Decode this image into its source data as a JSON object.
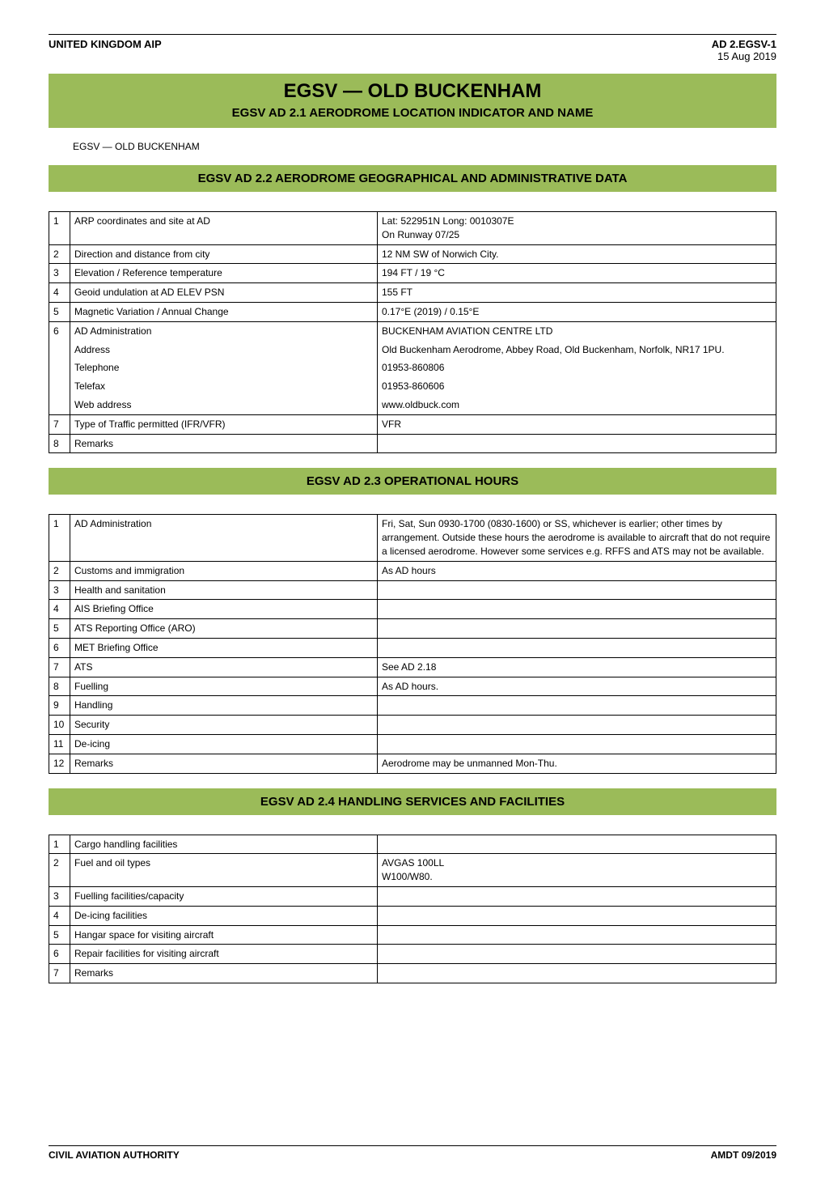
{
  "header": {
    "left": "UNITED KINGDOM AIP",
    "right_code": "AD 2.EGSV-1",
    "right_date": "15 Aug 2019"
  },
  "title_band": {
    "main_title": "EGSV — OLD BUCKENHAM",
    "sub_title": "EGSV AD 2.1  AERODROME LOCATION INDICATOR AND NAME"
  },
  "plain_line": "EGSV — OLD BUCKENHAM",
  "section_2_2": {
    "heading": "EGSV AD 2.2  AERODROME GEOGRAPHICAL AND ADMINISTRATIVE DATA",
    "rows": {
      "r1_num": "1",
      "r1_label": "ARP coordinates and site at AD",
      "r1_val_line1": "Lat: 522951N   Long: 0010307E",
      "r1_val_line2": "On Runway 07/25",
      "r2_num": "2",
      "r2_label": "Direction and distance from city",
      "r2_val": "12 NM SW of Norwich City.",
      "r3_num": "3",
      "r3_label": "Elevation / Reference temperature",
      "r3_val": "194 FT / 19 °C",
      "r4_num": "4",
      "r4_label": "Geoid undulation at AD ELEV PSN",
      "r4_val": "155 FT",
      "r5_num": "5",
      "r5_label": "Magnetic Variation / Annual Change",
      "r5_val": "0.17°E (2019) / 0.15°E",
      "r6_num": "6",
      "r6_label": "AD Administration",
      "r6_val": "BUCKENHAM AVIATION CENTRE LTD",
      "r6a_label": "Address",
      "r6a_val": "Old Buckenham Aerodrome, Abbey Road, Old Buckenham, Norfolk, NR17 1PU.",
      "r6b_label": "Telephone",
      "r6b_val": "01953-860806",
      "r6c_label": "Telefax",
      "r6c_val": "01953-860606",
      "r6d_label": "Web address",
      "r6d_val": "www.oldbuck.com",
      "r7_num": "7",
      "r7_label": "Type of Traffic permitted (IFR/VFR)",
      "r7_val": "VFR",
      "r8_num": "8",
      "r8_label": "Remarks",
      "r8_val": ""
    }
  },
  "section_2_3": {
    "heading": "EGSV AD 2.3  OPERATIONAL HOURS",
    "rows": {
      "r1_num": "1",
      "r1_label": "AD Administration",
      "r1_val": "Fri, Sat, Sun 0930-1700 (0830-1600) or SS, whichever is earlier; other times by arrangement. Outside these hours the aerodrome is available to aircraft that do not require a licensed aerodrome. However some services e.g. RFFS and ATS may not be available.",
      "r2_num": "2",
      "r2_label": "Customs and immigration",
      "r2_val": "As AD hours",
      "r3_num": "3",
      "r3_label": "Health and sanitation",
      "r3_val": "",
      "r4_num": "4",
      "r4_label": "AIS Briefing Office",
      "r4_val": "",
      "r5_num": "5",
      "r5_label": "ATS Reporting Office (ARO)",
      "r5_val": "",
      "r6_num": "6",
      "r6_label": "MET Briefing Office",
      "r6_val": "",
      "r7_num": "7",
      "r7_label": "ATS",
      "r7_val": "See AD 2.18",
      "r8_num": "8",
      "r8_label": "Fuelling",
      "r8_val": "As AD hours.",
      "r9_num": "9",
      "r9_label": "Handling",
      "r9_val": "",
      "r10_num": "10",
      "r10_label": "Security",
      "r10_val": "",
      "r11_num": "11",
      "r11_label": "De-icing",
      "r11_val": "",
      "r12_num": "12",
      "r12_label": "Remarks",
      "r12_val": "Aerodrome may be unmanned Mon-Thu."
    }
  },
  "section_2_4": {
    "heading": "EGSV AD 2.4  HANDLING SERVICES AND FACILITIES",
    "rows": {
      "r1_num": "1",
      "r1_label": "Cargo handling facilities",
      "r1_val": "",
      "r2_num": "2",
      "r2_label": "Fuel and oil types",
      "r2_val_line1": "AVGAS 100LL",
      "r2_val_line2": "W100/W80.",
      "r3_num": "3",
      "r3_label": "Fuelling facilities/capacity",
      "r3_val": "",
      "r4_num": "4",
      "r4_label": "De-icing facilities",
      "r4_val": "",
      "r5_num": "5",
      "r5_label": "Hangar space for visiting aircraft",
      "r5_val": "",
      "r6_num": "6",
      "r6_label": "Repair facilities for visiting aircraft",
      "r6_val": "",
      "r7_num": "7",
      "r7_label": "Remarks",
      "r7_val": ""
    }
  },
  "footer": {
    "left": "CIVIL AVIATION AUTHORITY",
    "right": "AMDT 09/2019"
  }
}
